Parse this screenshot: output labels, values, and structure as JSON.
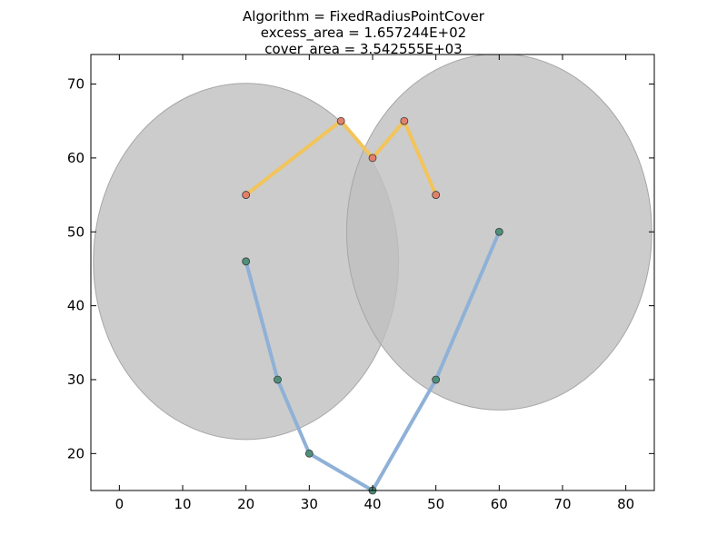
{
  "chart_data": {
    "type": "scatter",
    "title_lines": [
      "Algorithm = FixedRadiusPointCover",
      "excess_area = 1.657244E+02",
      "cover_area = 3.542555E+03"
    ],
    "xlim": [
      -4.5,
      84.5
    ],
    "ylim": [
      15,
      74
    ],
    "xticks": [
      0,
      10,
      20,
      30,
      40,
      50,
      60,
      70,
      80
    ],
    "yticks": [
      20,
      30,
      40,
      50,
      60,
      70
    ],
    "xlabel": "",
    "ylabel": "",
    "grid": false,
    "circles": [
      {
        "cx": 20,
        "cy": 46,
        "r": 24.1,
        "color": "#bfbfbf",
        "edge": "#a6a6a6",
        "opacity": 0.8
      },
      {
        "cx": 60,
        "cy": 50,
        "r": 24.1,
        "color": "#bfbfbf",
        "edge": "#a6a6a6",
        "opacity": 0.8
      }
    ],
    "series": [
      {
        "line_color": "#f2c45a",
        "marker_fill": "#e2806a",
        "points": [
          [
            20,
            55
          ],
          [
            35,
            65
          ],
          [
            40,
            60
          ],
          [
            45,
            65
          ],
          [
            50,
            55
          ]
        ]
      },
      {
        "line_color": "#8fb1d7",
        "marker_fill": "#4f8f7c",
        "points": [
          [
            20,
            46
          ],
          [
            25,
            30
          ],
          [
            30,
            20
          ],
          [
            40,
            15
          ],
          [
            50,
            30
          ],
          [
            60,
            50
          ]
        ]
      }
    ]
  }
}
